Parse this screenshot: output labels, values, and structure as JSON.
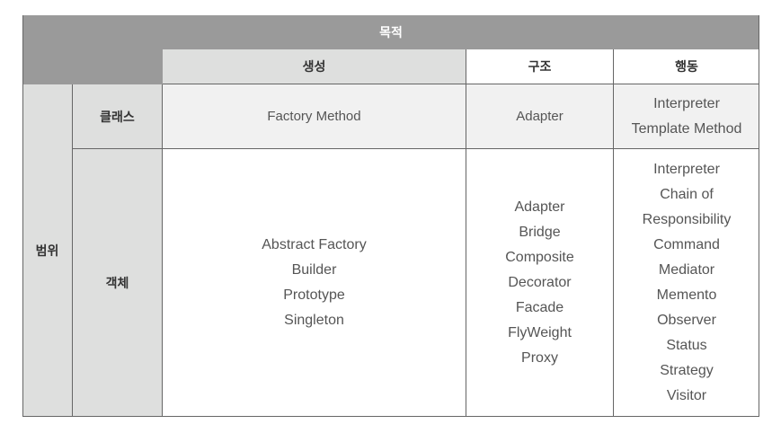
{
  "table": {
    "purpose_header": "목적",
    "columns": [
      "생성",
      "구조",
      "행동"
    ],
    "scope_header": "범위",
    "rows": [
      {
        "label": "클래스",
        "creational": [
          "Factory Method"
        ],
        "structural": [
          "Adapter"
        ],
        "behavioral": [
          "Interpreter",
          "Template Method"
        ]
      },
      {
        "label": "객체",
        "creational": [
          "Abstract Factory",
          "Builder",
          "Prototype",
          "Singleton"
        ],
        "structural": [
          "Adapter",
          "Bridge",
          "Composite",
          "Decorator",
          "Facade",
          "FlyWeight",
          "Proxy"
        ],
        "behavioral": [
          "Interpreter",
          "Chain of",
          "Responsibility",
          "Command",
          "Mediator",
          "Memento",
          "Observer",
          "Status",
          "Strategy",
          "Visitor"
        ]
      }
    ]
  }
}
